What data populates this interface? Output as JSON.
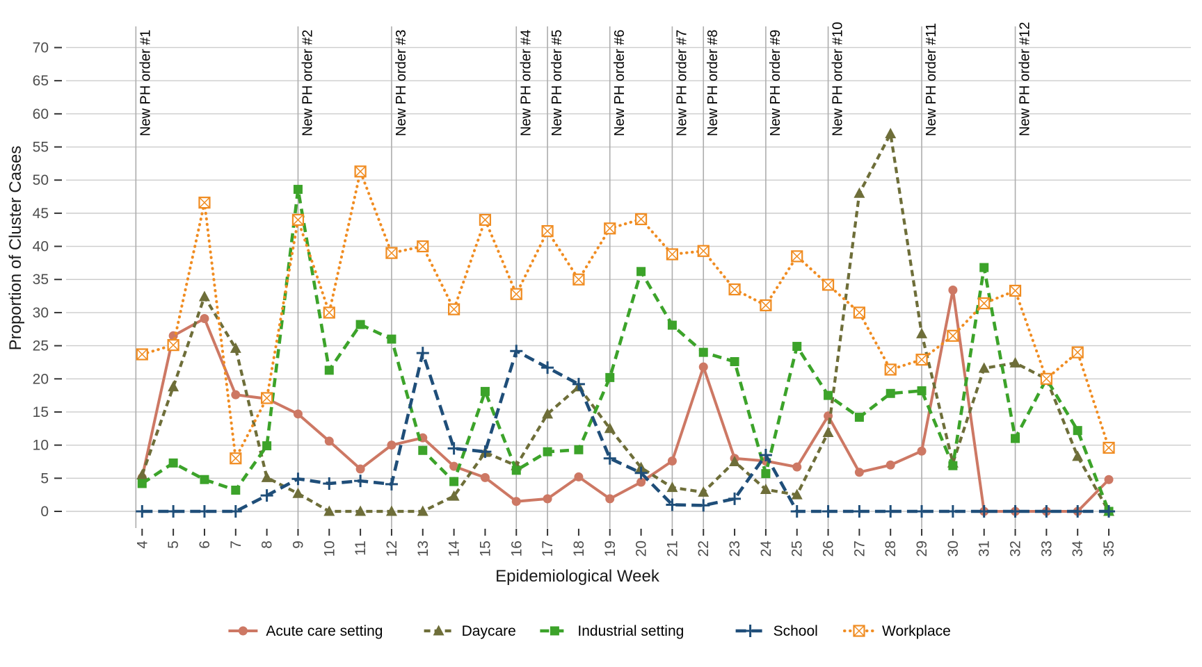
{
  "chart_data": {
    "type": "line",
    "title": "",
    "xlabel": "Epidemiological Week",
    "ylabel": "Proportion of Cluster Cases",
    "x": [
      4,
      5,
      6,
      7,
      8,
      9,
      10,
      11,
      12,
      13,
      14,
      15,
      16,
      17,
      18,
      19,
      20,
      21,
      22,
      23,
      24,
      25,
      26,
      27,
      28,
      29,
      30,
      31,
      32,
      33,
      34,
      35
    ],
    "ylim": [
      0,
      70
    ],
    "y_ticks": [
      0,
      5,
      10,
      15,
      20,
      25,
      30,
      35,
      40,
      45,
      50,
      55,
      60,
      65,
      70
    ],
    "grid": "horizontal-only",
    "legend_position": "bottom-center",
    "series": [
      {
        "name": "Acute care setting",
        "color": "#CD7864",
        "marker": "circle",
        "line": "solid",
        "values": [
          5.1,
          26.5,
          29.1,
          17.6,
          17.0,
          14.7,
          10.6,
          6.4,
          10.0,
          11.1,
          6.8,
          5.1,
          1.5,
          1.9,
          5.2,
          1.9,
          4.4,
          7.6,
          21.8,
          8.0,
          7.6,
          6.7,
          14.4,
          5.9,
          7.0,
          9.1,
          33.4,
          0,
          0,
          0,
          0,
          4.8
        ]
      },
      {
        "name": "Daycare",
        "color": "#6E6E39",
        "marker": "triangle",
        "line": "dashed-short",
        "values": [
          5.5,
          18.8,
          32.4,
          24.6,
          5.1,
          2.7,
          0,
          0,
          0,
          0,
          2.3,
          8.9,
          6.9,
          14.7,
          18.8,
          12.5,
          6.6,
          3.6,
          2.9,
          7.5,
          3.3,
          2.5,
          11.9,
          48.0,
          57.0,
          26.8,
          7.3,
          21.6,
          22.4,
          20.0,
          8.3,
          0
        ]
      },
      {
        "name": "Industrial setting",
        "color": "#3CA32A",
        "marker": "square",
        "line": "dashed",
        "values": [
          4.2,
          7.3,
          4.8,
          3.2,
          9.9,
          48.6,
          21.3,
          28.2,
          26.0,
          9.2,
          4.5,
          18.1,
          6.2,
          9.0,
          9.3,
          20.2,
          36.2,
          28.1,
          24.0,
          22.6,
          5.7,
          24.9,
          17.5,
          14.2,
          17.8,
          18.2,
          6.9,
          36.8,
          11.0,
          20.0,
          12.2,
          0
        ]
      },
      {
        "name": "School",
        "color": "#1F4E79",
        "marker": "plus",
        "line": "dashed-long",
        "values": [
          0,
          0,
          0,
          0,
          2.4,
          4.9,
          4.2,
          4.6,
          4.1,
          23.9,
          9.5,
          9.0,
          24.2,
          21.7,
          19.2,
          8.0,
          5.8,
          1.0,
          0.9,
          1.9,
          8.5,
          0,
          0,
          0,
          0,
          0,
          0,
          0,
          0,
          0,
          0,
          0
        ]
      },
      {
        "name": "Workplace",
        "color": "#F08C21",
        "marker": "crossed-square",
        "line": "dotted",
        "values": [
          23.7,
          25.1,
          46.6,
          8.0,
          17.1,
          44.0,
          30.0,
          51.3,
          39.0,
          40.0,
          30.5,
          44.0,
          32.8,
          42.3,
          35.0,
          42.7,
          44.1,
          38.8,
          39.3,
          33.5,
          31.1,
          38.5,
          34.2,
          30.0,
          21.4,
          22.9,
          26.5,
          31.4,
          33.3,
          20.0,
          24.0,
          9.6
        ]
      }
    ],
    "vline_annotations": [
      {
        "label": "New PH order #1",
        "week": 3.8
      },
      {
        "label": "New PH order #2",
        "week": 9
      },
      {
        "label": "New PH order #3",
        "week": 12
      },
      {
        "label": "New PH order #4",
        "week": 16
      },
      {
        "label": "New PH order #5",
        "week": 17
      },
      {
        "label": "New PH order #6",
        "week": 19
      },
      {
        "label": "New PH order #7",
        "week": 21
      },
      {
        "label": "New PH order #8",
        "week": 22
      },
      {
        "label": "New PH order #9",
        "week": 24
      },
      {
        "label": "New PH order #10",
        "week": 26
      },
      {
        "label": "New PH order #11",
        "week": 29
      },
      {
        "label": "New PH order #12",
        "week": 32
      }
    ],
    "colors": {
      "grid": "#CCCCCC",
      "vline": "#ADADAD",
      "tick_mark": "#333333",
      "tick_text": "#4D4D4D",
      "axis_title_text": "#1A1A1A",
      "annotation_text": "#000000",
      "background": "#FFFFFF"
    }
  }
}
